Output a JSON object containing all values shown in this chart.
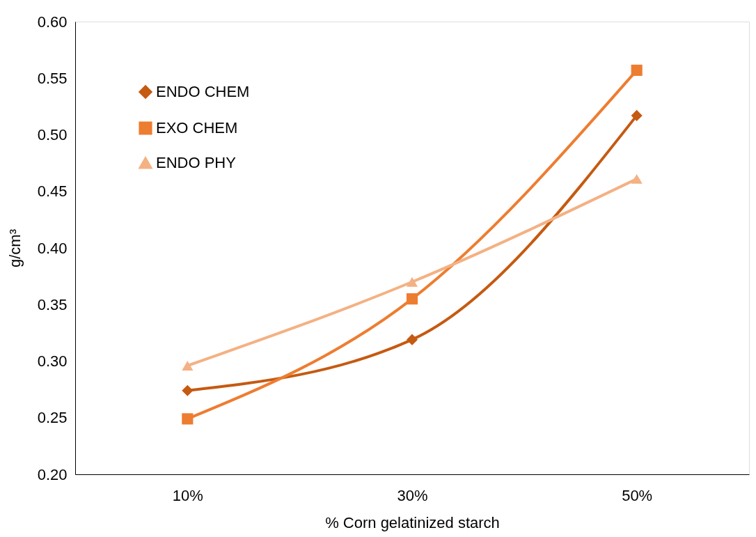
{
  "chart_data": {
    "type": "line",
    "xlabel": "% Corn gelatinized starch",
    "ylabel": "g/cm³",
    "categories": [
      "10%",
      "30%",
      "50%"
    ],
    "series": [
      {
        "name": "ENDO CHEM",
        "color": "#c55a11",
        "marker": "diamond",
        "values": [
          0.274,
          0.319,
          0.517
        ]
      },
      {
        "name": "EXO CHEM",
        "color": "#ed7d31",
        "marker": "square",
        "values": [
          0.249,
          0.355,
          0.557
        ]
      },
      {
        "name": "ENDO PHY",
        "color": "#f4b183",
        "marker": "triangle",
        "values": [
          0.296,
          0.37,
          0.461
        ]
      }
    ],
    "ylim": [
      0.2,
      0.6
    ],
    "yticks": [
      {
        "value": 0.2,
        "label": "0.20"
      },
      0.25,
      {
        "value": 0.3,
        "label": "0.30"
      },
      0.35,
      {
        "value": 0.4,
        "label": "0.40"
      },
      0.45,
      {
        "value": 0.5,
        "label": "0.50"
      },
      0.55,
      {
        "value": 0.6,
        "label": "0.60"
      }
    ],
    "grid": false,
    "legend": "top left",
    "line_style": "solid"
  }
}
